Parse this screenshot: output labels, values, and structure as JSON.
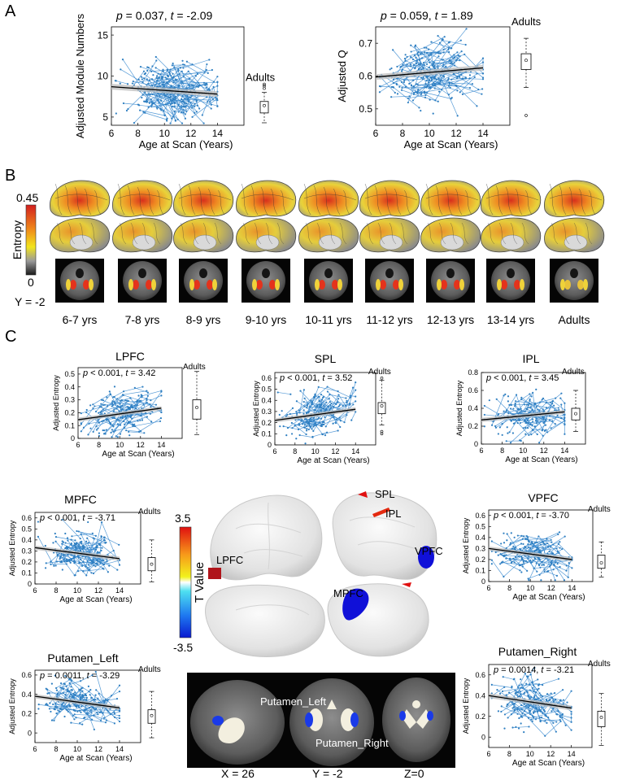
{
  "panels": {
    "a": "A",
    "b": "B",
    "c": "C"
  },
  "colors": {
    "point": "#2f7fc1",
    "line": "#3a8ad0",
    "trend": "#000000",
    "ci": "#bdbdbd",
    "brain_surface": "#e6e6e6",
    "t_pos": "#d7191c",
    "t_neg": "#1a1adb"
  },
  "panel_b": {
    "colorbar_max": "0.45",
    "colorbar_min": "0",
    "colorbar_label": "Entropy",
    "slice_label": "Y = -2",
    "age_groups": [
      "6-7 yrs",
      "7-8 yrs",
      "8-9 yrs",
      "9-10 yrs",
      "10-11 yrs",
      "11-12 yrs",
      "12-13 yrs",
      "13-14 yrs",
      "Adults"
    ]
  },
  "panel_c_map": {
    "tbar_max": "3.5",
    "tbar_min": "-3.5",
    "tbar_label": "T Value",
    "regions": {
      "lpfc": "LPFC",
      "spl": "SPL",
      "ipl": "IPL",
      "vpfc": "VPFC",
      "mpfc": "MPFC",
      "putamen_left": "Putamen_Left",
      "putamen_right": "Putamen_Right"
    },
    "slices": {
      "x": "X = 26",
      "y": "Y = -2",
      "z": "Z=0"
    }
  },
  "chart_data": [
    {
      "id": "modules",
      "type": "scatter",
      "title": "",
      "stat_p": "p = 0.037, ",
      "stat_t": " = -2.09",
      "xlabel": "Age at Scan (Years)",
      "ylabel": "Adjusted Module Numbers",
      "xlim": [
        6,
        16
      ],
      "ylim": [
        4,
        16
      ],
      "xticks": [
        6,
        8,
        10,
        12,
        14
      ],
      "yticks": [
        5,
        10,
        15
      ],
      "trend": [
        8.7,
        7.8
      ],
      "adults_label": "Adults",
      "adults_box": {
        "min": 4.3,
        "q1": 5.5,
        "median": 6.4,
        "q3": 6.9,
        "max": 8.0,
        "outliers": [
          8.5,
          8.8,
          9.0
        ]
      }
    },
    {
      "id": "q",
      "type": "scatter",
      "title": "",
      "stat_p": "p = 0.059, ",
      "stat_t": " = 1.89",
      "xlabel": "Age at Scan (Years)",
      "ylabel": "Adjusted Q",
      "xlim": [
        6,
        16
      ],
      "ylim": [
        0.45,
        0.75
      ],
      "xticks": [
        6,
        8,
        10,
        12,
        14
      ],
      "yticks": [
        0.5,
        0.6,
        0.7
      ],
      "trend": [
        0.597,
        0.625
      ],
      "adults_label": "Adults",
      "adults_box": {
        "min": 0.565,
        "q1": 0.62,
        "median": 0.648,
        "q3": 0.668,
        "max": 0.715,
        "outliers": [
          0.48
        ]
      }
    },
    {
      "id": "lpfc",
      "type": "scatter",
      "title": "LPFC",
      "stat_p": "p < 0.001, ",
      "stat_t": " = 3.42",
      "xlabel": "Age at Scan (Years)",
      "ylabel": "Adjusted Entropy",
      "xlim": [
        6,
        16
      ],
      "ylim": [
        0,
        0.55
      ],
      "xticks": [
        6,
        8,
        10,
        12,
        14
      ],
      "yticks": [
        0,
        0.1,
        0.2,
        0.3,
        0.4,
        0.5
      ],
      "trend": [
        0.145,
        0.235
      ],
      "adults_label": "Adults",
      "adults_box": {
        "min": 0.03,
        "q1": 0.15,
        "median": 0.24,
        "q3": 0.3,
        "max": 0.52,
        "outliers": []
      }
    },
    {
      "id": "spl",
      "type": "scatter",
      "title": "SPL",
      "stat_p": "p < 0.001, ",
      "stat_t": " = 3.52",
      "xlabel": "Age at Scan (Years)",
      "ylabel": "Adjusted Entropy",
      "xlim": [
        6,
        16
      ],
      "ylim": [
        0,
        0.65
      ],
      "xticks": [
        6,
        8,
        10,
        12,
        14
      ],
      "yticks": [
        0,
        0.1,
        0.2,
        0.3,
        0.4,
        0.5,
        0.6
      ],
      "trend": [
        0.22,
        0.32
      ],
      "adults_label": "Adults",
      "adults_box": {
        "min": 0.18,
        "q1": 0.28,
        "median": 0.35,
        "q3": 0.38,
        "max": 0.58,
        "outliers": [
          0.1,
          0.12,
          0.6
        ]
      }
    },
    {
      "id": "ipl",
      "type": "scatter",
      "title": "IPL",
      "stat_p": "p < 0.001, ",
      "stat_t": " = 3.45",
      "xlabel": "Age at Scan (Years)",
      "ylabel": "Adjusted Entropy",
      "xlim": [
        6,
        16
      ],
      "ylim": [
        0,
        0.8
      ],
      "xticks": [
        6,
        8,
        10,
        12,
        14
      ],
      "yticks": [
        0,
        0.2,
        0.4,
        0.6,
        0.8
      ],
      "trend": [
        0.27,
        0.36
      ],
      "adults_label": "Adults",
      "adults_box": {
        "min": 0.14,
        "q1": 0.27,
        "median": 0.34,
        "q3": 0.4,
        "max": 0.6,
        "outliers": []
      }
    },
    {
      "id": "mpfc",
      "type": "scatter",
      "title": "MPFC",
      "stat_p": "p < 0.001, ",
      "stat_t": " = -3.71",
      "xlabel": "Age at Scan (Years)",
      "ylabel": "Adjusted Entropy",
      "xlim": [
        6,
        16
      ],
      "ylim": [
        0,
        0.65
      ],
      "xticks": [
        6,
        8,
        10,
        12,
        14
      ],
      "yticks": [
        0,
        0.1,
        0.2,
        0.3,
        0.4,
        0.5,
        0.6
      ],
      "trend": [
        0.33,
        0.23
      ],
      "adults_label": "Adults",
      "adults_box": {
        "min": 0.02,
        "q1": 0.12,
        "median": 0.18,
        "q3": 0.24,
        "max": 0.4,
        "outliers": []
      }
    },
    {
      "id": "vpfc",
      "type": "scatter",
      "title": "VPFC",
      "stat_p": "p < 0.001, ",
      "stat_t": " = -3.70",
      "xlabel": "Age at Scan (Years)",
      "ylabel": "Adjusted Entropy",
      "xlim": [
        6,
        16
      ],
      "ylim": [
        0,
        0.65
      ],
      "xticks": [
        6,
        8,
        10,
        12,
        14
      ],
      "yticks": [
        0,
        0.1,
        0.2,
        0.3,
        0.4,
        0.5,
        0.6
      ],
      "trend": [
        0.3,
        0.2
      ],
      "adults_label": "Adults",
      "adults_box": {
        "min": 0.04,
        "q1": 0.12,
        "median": 0.17,
        "q3": 0.24,
        "max": 0.36,
        "outliers": []
      }
    },
    {
      "id": "put_l",
      "type": "scatter",
      "title": "Putamen_Left",
      "stat_p": "p = 0.0011, ",
      "stat_t": " = -3.29",
      "xlabel": "Age at Scan (Years)",
      "ylabel": "Adjusted Entropy",
      "xlim": [
        6,
        16
      ],
      "ylim": [
        -0.1,
        0.65
      ],
      "xticks": [
        6,
        8,
        10,
        12,
        14
      ],
      "yticks": [
        0,
        0.2,
        0.4,
        0.6
      ],
      "trend": [
        0.38,
        0.26
      ],
      "adults_label": "Adults",
      "adults_box": {
        "min": -0.05,
        "q1": 0.1,
        "median": 0.18,
        "q3": 0.24,
        "max": 0.43,
        "outliers": []
      }
    },
    {
      "id": "put_r",
      "type": "scatter",
      "title": "Putamen_Right",
      "stat_p": "p = 0.0014, ",
      "stat_t": " = -3.21",
      "xlabel": "Age at Scan (Years)",
      "ylabel": "Adjusted Entropy",
      "xlim": [
        6,
        16
      ],
      "ylim": [
        -0.1,
        0.7
      ],
      "xticks": [
        6,
        8,
        10,
        12,
        14
      ],
      "yticks": [
        0,
        0.2,
        0.4,
        0.6
      ],
      "trend": [
        0.4,
        0.28
      ],
      "adults_label": "Adults",
      "adults_box": {
        "min": -0.08,
        "q1": 0.1,
        "median": 0.19,
        "q3": 0.25,
        "max": 0.42,
        "outliers": []
      }
    }
  ]
}
